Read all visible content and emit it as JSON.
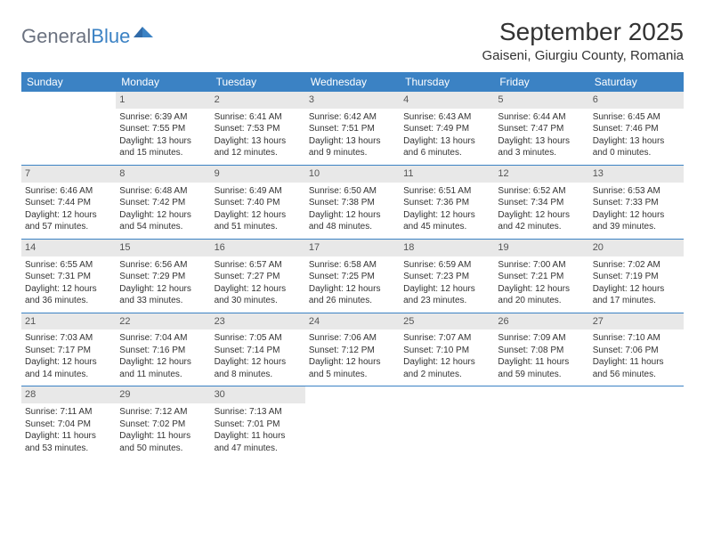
{
  "brand": {
    "part1": "General",
    "part2": "Blue"
  },
  "title": "September 2025",
  "location": "Gaiseni, Giurgiu County, Romania",
  "colors": {
    "header_bg": "#3b82c4",
    "header_text": "#ffffff",
    "daynum_bg": "#e8e8e8",
    "daynum_text": "#555555",
    "body_text": "#333333",
    "rule": "#3b82c4",
    "page_bg": "#ffffff"
  },
  "weekdays": [
    "Sunday",
    "Monday",
    "Tuesday",
    "Wednesday",
    "Thursday",
    "Friday",
    "Saturday"
  ],
  "weeks": [
    [
      {
        "n": "",
        "sr": "",
        "ss": "",
        "dl": ""
      },
      {
        "n": "1",
        "sr": "Sunrise: 6:39 AM",
        "ss": "Sunset: 7:55 PM",
        "dl": "Daylight: 13 hours and 15 minutes."
      },
      {
        "n": "2",
        "sr": "Sunrise: 6:41 AM",
        "ss": "Sunset: 7:53 PM",
        "dl": "Daylight: 13 hours and 12 minutes."
      },
      {
        "n": "3",
        "sr": "Sunrise: 6:42 AM",
        "ss": "Sunset: 7:51 PM",
        "dl": "Daylight: 13 hours and 9 minutes."
      },
      {
        "n": "4",
        "sr": "Sunrise: 6:43 AM",
        "ss": "Sunset: 7:49 PM",
        "dl": "Daylight: 13 hours and 6 minutes."
      },
      {
        "n": "5",
        "sr": "Sunrise: 6:44 AM",
        "ss": "Sunset: 7:47 PM",
        "dl": "Daylight: 13 hours and 3 minutes."
      },
      {
        "n": "6",
        "sr": "Sunrise: 6:45 AM",
        "ss": "Sunset: 7:46 PM",
        "dl": "Daylight: 13 hours and 0 minutes."
      }
    ],
    [
      {
        "n": "7",
        "sr": "Sunrise: 6:46 AM",
        "ss": "Sunset: 7:44 PM",
        "dl": "Daylight: 12 hours and 57 minutes."
      },
      {
        "n": "8",
        "sr": "Sunrise: 6:48 AM",
        "ss": "Sunset: 7:42 PM",
        "dl": "Daylight: 12 hours and 54 minutes."
      },
      {
        "n": "9",
        "sr": "Sunrise: 6:49 AM",
        "ss": "Sunset: 7:40 PM",
        "dl": "Daylight: 12 hours and 51 minutes."
      },
      {
        "n": "10",
        "sr": "Sunrise: 6:50 AM",
        "ss": "Sunset: 7:38 PM",
        "dl": "Daylight: 12 hours and 48 minutes."
      },
      {
        "n": "11",
        "sr": "Sunrise: 6:51 AM",
        "ss": "Sunset: 7:36 PM",
        "dl": "Daylight: 12 hours and 45 minutes."
      },
      {
        "n": "12",
        "sr": "Sunrise: 6:52 AM",
        "ss": "Sunset: 7:34 PM",
        "dl": "Daylight: 12 hours and 42 minutes."
      },
      {
        "n": "13",
        "sr": "Sunrise: 6:53 AM",
        "ss": "Sunset: 7:33 PM",
        "dl": "Daylight: 12 hours and 39 minutes."
      }
    ],
    [
      {
        "n": "14",
        "sr": "Sunrise: 6:55 AM",
        "ss": "Sunset: 7:31 PM",
        "dl": "Daylight: 12 hours and 36 minutes."
      },
      {
        "n": "15",
        "sr": "Sunrise: 6:56 AM",
        "ss": "Sunset: 7:29 PM",
        "dl": "Daylight: 12 hours and 33 minutes."
      },
      {
        "n": "16",
        "sr": "Sunrise: 6:57 AM",
        "ss": "Sunset: 7:27 PM",
        "dl": "Daylight: 12 hours and 30 minutes."
      },
      {
        "n": "17",
        "sr": "Sunrise: 6:58 AM",
        "ss": "Sunset: 7:25 PM",
        "dl": "Daylight: 12 hours and 26 minutes."
      },
      {
        "n": "18",
        "sr": "Sunrise: 6:59 AM",
        "ss": "Sunset: 7:23 PM",
        "dl": "Daylight: 12 hours and 23 minutes."
      },
      {
        "n": "19",
        "sr": "Sunrise: 7:00 AM",
        "ss": "Sunset: 7:21 PM",
        "dl": "Daylight: 12 hours and 20 minutes."
      },
      {
        "n": "20",
        "sr": "Sunrise: 7:02 AM",
        "ss": "Sunset: 7:19 PM",
        "dl": "Daylight: 12 hours and 17 minutes."
      }
    ],
    [
      {
        "n": "21",
        "sr": "Sunrise: 7:03 AM",
        "ss": "Sunset: 7:17 PM",
        "dl": "Daylight: 12 hours and 14 minutes."
      },
      {
        "n": "22",
        "sr": "Sunrise: 7:04 AM",
        "ss": "Sunset: 7:16 PM",
        "dl": "Daylight: 12 hours and 11 minutes."
      },
      {
        "n": "23",
        "sr": "Sunrise: 7:05 AM",
        "ss": "Sunset: 7:14 PM",
        "dl": "Daylight: 12 hours and 8 minutes."
      },
      {
        "n": "24",
        "sr": "Sunrise: 7:06 AM",
        "ss": "Sunset: 7:12 PM",
        "dl": "Daylight: 12 hours and 5 minutes."
      },
      {
        "n": "25",
        "sr": "Sunrise: 7:07 AM",
        "ss": "Sunset: 7:10 PM",
        "dl": "Daylight: 12 hours and 2 minutes."
      },
      {
        "n": "26",
        "sr": "Sunrise: 7:09 AM",
        "ss": "Sunset: 7:08 PM",
        "dl": "Daylight: 11 hours and 59 minutes."
      },
      {
        "n": "27",
        "sr": "Sunrise: 7:10 AM",
        "ss": "Sunset: 7:06 PM",
        "dl": "Daylight: 11 hours and 56 minutes."
      }
    ],
    [
      {
        "n": "28",
        "sr": "Sunrise: 7:11 AM",
        "ss": "Sunset: 7:04 PM",
        "dl": "Daylight: 11 hours and 53 minutes."
      },
      {
        "n": "29",
        "sr": "Sunrise: 7:12 AM",
        "ss": "Sunset: 7:02 PM",
        "dl": "Daylight: 11 hours and 50 minutes."
      },
      {
        "n": "30",
        "sr": "Sunrise: 7:13 AM",
        "ss": "Sunset: 7:01 PM",
        "dl": "Daylight: 11 hours and 47 minutes."
      },
      {
        "n": "",
        "sr": "",
        "ss": "",
        "dl": ""
      },
      {
        "n": "",
        "sr": "",
        "ss": "",
        "dl": ""
      },
      {
        "n": "",
        "sr": "",
        "ss": "",
        "dl": ""
      },
      {
        "n": "",
        "sr": "",
        "ss": "",
        "dl": ""
      }
    ]
  ]
}
